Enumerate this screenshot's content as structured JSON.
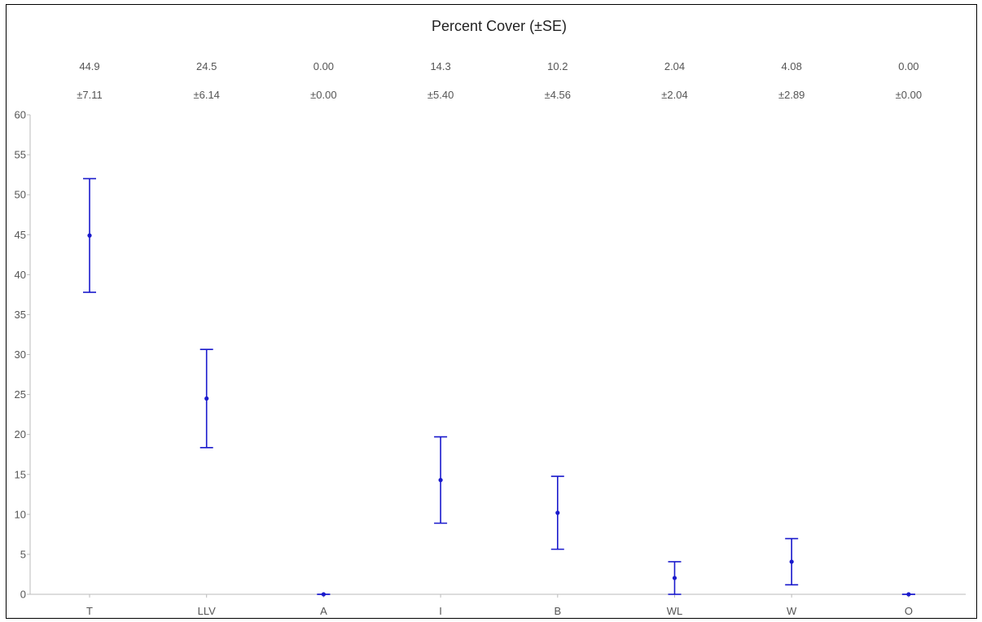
{
  "chart_data": {
    "type": "scatter",
    "title": "Percent Cover (±SE)",
    "xlabel": "",
    "ylabel": "",
    "categories": [
      "T",
      "LLV",
      "A",
      "I",
      "B",
      "WL",
      "W",
      "O"
    ],
    "mean_labels": [
      "44.9",
      "24.5",
      "0.00",
      "14.3",
      "10.2",
      "2.04",
      "4.08",
      "0.00"
    ],
    "se_labels": [
      "±7.11",
      "±6.14",
      "±0.00",
      "±5.40",
      "±4.56",
      "±2.04",
      "±2.89",
      "±0.00"
    ],
    "series": [
      {
        "values": [
          44.9,
          24.5,
          0.0,
          14.3,
          10.2,
          2.04,
          4.08,
          0.0
        ],
        "se": [
          7.11,
          6.14,
          0.0,
          5.4,
          4.56,
          2.04,
          2.89,
          0.0
        ],
        "color": "#1a1acc"
      }
    ],
    "ylim": [
      0,
      60
    ],
    "yticks": [
      0,
      5,
      10,
      15,
      20,
      25,
      30,
      35,
      40,
      45,
      50,
      55,
      60
    ],
    "grid": false,
    "legend": "none"
  }
}
